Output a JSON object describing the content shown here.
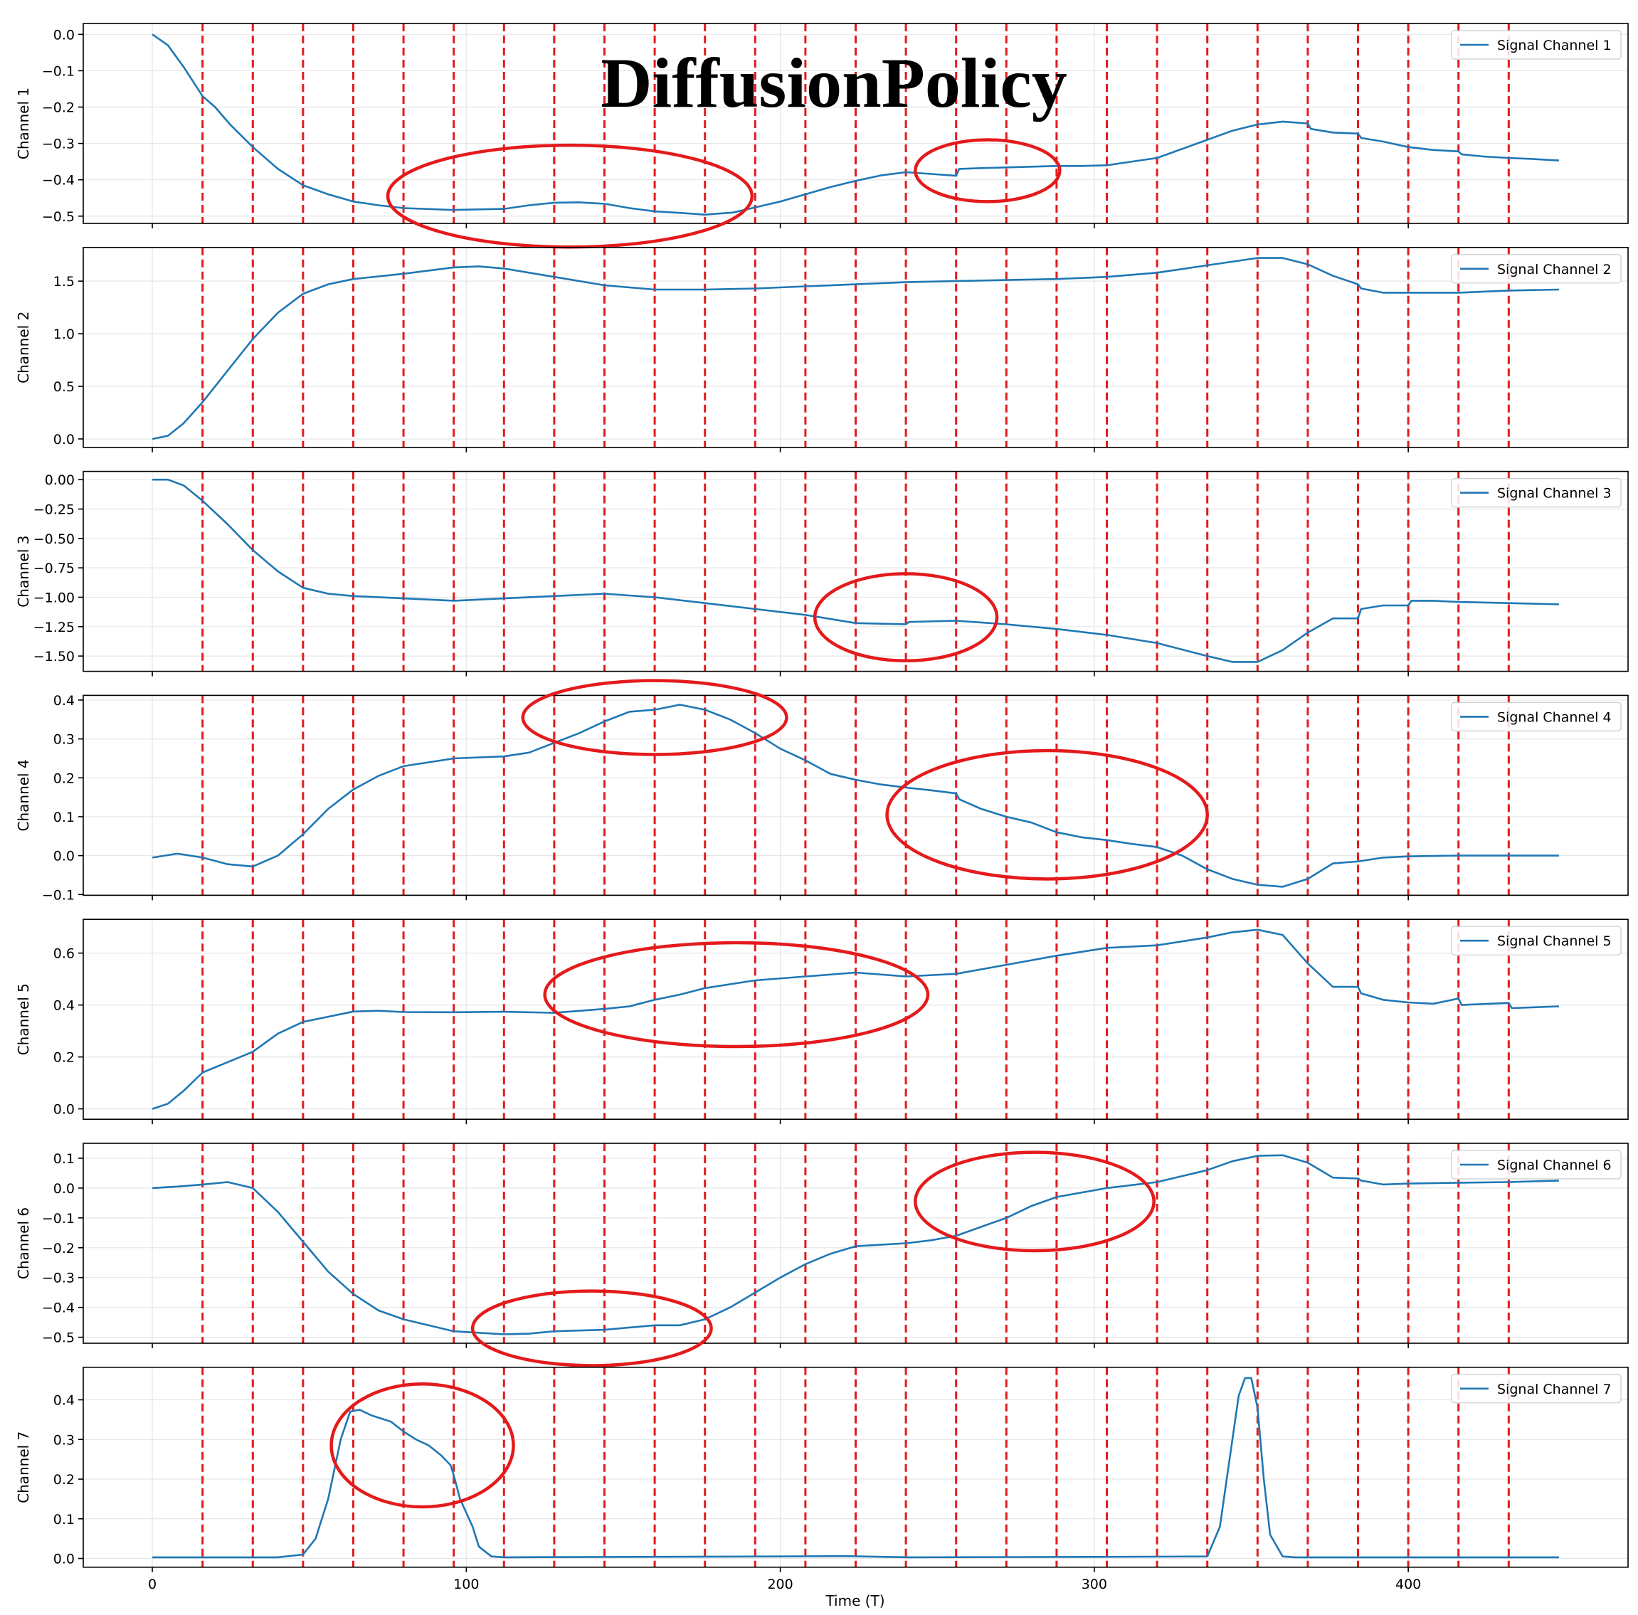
{
  "title": "DiffusionPolicy",
  "xlabel": "Time (T)",
  "colors": {
    "line": "#1f77b4",
    "marker": "#e41a1c",
    "grid": "#e6e6e6"
  },
  "chart_data": {
    "type": "line",
    "title": "DiffusionPolicy",
    "xlabel": "Time (T)",
    "xlim": [
      -22,
      470
    ],
    "xticks": [
      0,
      100,
      200,
      300,
      400
    ],
    "grid": true,
    "legend_position": "top-right",
    "vertical_markers": {
      "style": "dashed",
      "color": "#e41a1c",
      "x": [
        16,
        32,
        48,
        64,
        80,
        96,
        112,
        128,
        144,
        160,
        176,
        192,
        208,
        224,
        240,
        256,
        272,
        288,
        304,
        320,
        336,
        352,
        368,
        384,
        400,
        416,
        432
      ]
    },
    "panels": [
      {
        "ylabel": "Channel 1",
        "legend": "Signal Channel 1",
        "ylim": [
          -0.52,
          0.03
        ],
        "yticks": [
          0.0,
          -0.1,
          -0.2,
          -0.3,
          -0.4,
          -0.5
        ],
        "x": [
          0,
          5,
          10,
          16,
          20,
          25,
          32,
          40,
          48,
          56,
          64,
          72,
          80,
          96,
          112,
          120,
          128,
          136,
          144,
          152,
          160,
          168,
          176,
          185,
          192,
          200,
          208,
          216,
          224,
          232,
          240,
          248,
          256,
          257,
          264,
          272,
          280,
          288,
          296,
          304,
          312,
          320,
          328,
          336,
          344,
          352,
          360,
          368,
          369,
          376,
          384,
          385,
          392,
          400,
          408,
          416,
          417,
          424,
          432,
          440,
          448
        ],
        "y": [
          0.0,
          -0.03,
          -0.09,
          -0.17,
          -0.2,
          -0.25,
          -0.31,
          -0.37,
          -0.415,
          -0.44,
          -0.46,
          -0.47,
          -0.478,
          -0.483,
          -0.48,
          -0.47,
          -0.463,
          -0.462,
          -0.466,
          -0.478,
          -0.487,
          -0.491,
          -0.496,
          -0.49,
          -0.476,
          -0.46,
          -0.44,
          -0.42,
          -0.403,
          -0.388,
          -0.379,
          -0.384,
          -0.389,
          -0.37,
          -0.368,
          -0.366,
          -0.364,
          -0.362,
          -0.362,
          -0.36,
          -0.35,
          -0.34,
          -0.315,
          -0.29,
          -0.265,
          -0.248,
          -0.24,
          -0.245,
          -0.26,
          -0.27,
          -0.273,
          -0.285,
          -0.295,
          -0.31,
          -0.318,
          -0.322,
          -0.33,
          -0.336,
          -0.34,
          -0.343,
          -0.347
        ],
        "annotations": [
          {
            "cx": 133,
            "cy": -0.445,
            "rx": 58,
            "ry": 0.14
          },
          {
            "cx": 266,
            "cy": -0.375,
            "rx": 23,
            "ry": 0.085
          }
        ]
      },
      {
        "ylabel": "Channel 2",
        "legend": "Signal Channel 2",
        "ylim": [
          -0.08,
          1.82
        ],
        "yticks": [
          0.0,
          0.5,
          1.0,
          1.5
        ],
        "x": [
          0,
          5,
          10,
          16,
          24,
          32,
          40,
          48,
          56,
          64,
          80,
          96,
          104,
          112,
          128,
          144,
          160,
          176,
          192,
          208,
          224,
          240,
          256,
          272,
          288,
          304,
          320,
          336,
          352,
          360,
          368,
          376,
          384,
          385,
          392,
          400,
          408,
          416,
          432,
          448
        ],
        "y": [
          0.0,
          0.03,
          0.15,
          0.35,
          0.65,
          0.95,
          1.2,
          1.38,
          1.47,
          1.52,
          1.57,
          1.63,
          1.64,
          1.62,
          1.54,
          1.46,
          1.42,
          1.42,
          1.43,
          1.45,
          1.47,
          1.49,
          1.5,
          1.51,
          1.52,
          1.54,
          1.58,
          1.65,
          1.72,
          1.72,
          1.66,
          1.55,
          1.47,
          1.43,
          1.39,
          1.39,
          1.39,
          1.39,
          1.41,
          1.42
        ],
        "annotations": []
      },
      {
        "ylabel": "Channel 3",
        "legend": "Signal Channel 3",
        "ylim": [
          -1.63,
          0.07
        ],
        "yticks": [
          0.0,
          -0.25,
          -0.5,
          -0.75,
          -1.0,
          -1.25,
          -1.5
        ],
        "x": [
          0,
          5,
          10,
          16,
          24,
          32,
          40,
          48,
          56,
          64,
          80,
          96,
          112,
          128,
          144,
          160,
          176,
          192,
          208,
          224,
          240,
          241,
          256,
          272,
          288,
          304,
          320,
          336,
          344,
          352,
          360,
          368,
          376,
          384,
          385,
          392,
          400,
          401,
          408,
          416,
          432,
          448
        ],
        "y": [
          0.0,
          0.0,
          -0.05,
          -0.18,
          -0.38,
          -0.6,
          -0.78,
          -0.92,
          -0.97,
          -0.99,
          -1.01,
          -1.03,
          -1.01,
          -0.99,
          -0.97,
          -1.0,
          -1.05,
          -1.1,
          -1.15,
          -1.22,
          -1.23,
          -1.21,
          -1.2,
          -1.23,
          -1.27,
          -1.32,
          -1.39,
          -1.5,
          -1.55,
          -1.55,
          -1.45,
          -1.3,
          -1.18,
          -1.18,
          -1.1,
          -1.07,
          -1.07,
          -1.03,
          -1.03,
          -1.04,
          -1.05,
          -1.06
        ],
        "annotations": [
          {
            "cx": 240,
            "cy": -1.17,
            "rx": 29,
            "ry": 0.37
          }
        ]
      },
      {
        "ylabel": "Channel 4",
        "legend": "Signal Channel 4",
        "ylim": [
          -0.102,
          0.412
        ],
        "yticks": [
          0.4,
          0.3,
          0.2,
          0.1,
          0.0,
          -0.1
        ],
        "x": [
          0,
          8,
          16,
          24,
          32,
          40,
          48,
          56,
          64,
          72,
          80,
          96,
          112,
          120,
          128,
          136,
          144,
          152,
          160,
          168,
          176,
          184,
          192,
          200,
          208,
          216,
          224,
          232,
          240,
          248,
          256,
          257,
          264,
          272,
          280,
          288,
          296,
          304,
          312,
          320,
          328,
          336,
          344,
          352,
          360,
          368,
          376,
          384,
          392,
          400,
          416,
          432,
          448
        ],
        "y": [
          -0.005,
          0.005,
          -0.005,
          -0.022,
          -0.028,
          0.0,
          0.055,
          0.12,
          0.17,
          0.205,
          0.23,
          0.25,
          0.255,
          0.265,
          0.29,
          0.315,
          0.345,
          0.37,
          0.375,
          0.388,
          0.375,
          0.35,
          0.315,
          0.275,
          0.245,
          0.21,
          0.195,
          0.183,
          0.175,
          0.168,
          0.16,
          0.145,
          0.12,
          0.1,
          0.085,
          0.06,
          0.047,
          0.04,
          0.03,
          0.022,
          0.0,
          -0.035,
          -0.06,
          -0.075,
          -0.08,
          -0.06,
          -0.02,
          -0.015,
          -0.005,
          -0.002,
          0.0,
          0.0,
          0.0
        ],
        "annotations": [
          {
            "cx": 160,
            "cy": 0.355,
            "rx": 42,
            "ry": 0.095
          },
          {
            "cx": 285,
            "cy": 0.105,
            "rx": 51,
            "ry": 0.165
          }
        ]
      },
      {
        "ylabel": "Channel 5",
        "legend": "Signal Channel 5",
        "ylim": [
          -0.04,
          0.73
        ],
        "yticks": [
          0.0,
          0.2,
          0.4,
          0.6
        ],
        "x": [
          0,
          5,
          10,
          16,
          24,
          32,
          40,
          48,
          56,
          64,
          72,
          80,
          96,
          112,
          128,
          144,
          152,
          160,
          168,
          176,
          192,
          208,
          224,
          240,
          256,
          272,
          288,
          304,
          320,
          336,
          344,
          352,
          360,
          368,
          376,
          384,
          385,
          392,
          400,
          408,
          416,
          417,
          432,
          433,
          448
        ],
        "y": [
          0.0,
          0.02,
          0.07,
          0.14,
          0.18,
          0.22,
          0.29,
          0.335,
          0.355,
          0.375,
          0.378,
          0.373,
          0.372,
          0.374,
          0.37,
          0.385,
          0.395,
          0.42,
          0.44,
          0.465,
          0.495,
          0.51,
          0.525,
          0.51,
          0.52,
          0.555,
          0.59,
          0.62,
          0.63,
          0.66,
          0.68,
          0.69,
          0.67,
          0.56,
          0.47,
          0.47,
          0.445,
          0.42,
          0.41,
          0.405,
          0.425,
          0.4,
          0.408,
          0.388,
          0.395
        ],
        "annotations": [
          {
            "cx": 186,
            "cy": 0.44,
            "rx": 61,
            "ry": 0.2
          }
        ]
      },
      {
        "ylabel": "Channel 6",
        "legend": "Signal Channel 6",
        "ylim": [
          -0.52,
          0.15
        ],
        "yticks": [
          0.1,
          0.0,
          -0.1,
          -0.2,
          -0.3,
          -0.4,
          -0.5
        ],
        "x": [
          0,
          8,
          16,
          24,
          32,
          40,
          48,
          56,
          64,
          72,
          80,
          96,
          112,
          120,
          128,
          144,
          160,
          168,
          176,
          184,
          192,
          200,
          208,
          216,
          224,
          232,
          240,
          248,
          256,
          264,
          272,
          280,
          288,
          296,
          304,
          320,
          336,
          344,
          352,
          360,
          368,
          376,
          384,
          385,
          392,
          400,
          416,
          432,
          448
        ],
        "y": [
          0.0,
          0.005,
          0.012,
          0.02,
          0.0,
          -0.08,
          -0.18,
          -0.28,
          -0.355,
          -0.41,
          -0.44,
          -0.48,
          -0.49,
          -0.488,
          -0.48,
          -0.475,
          -0.46,
          -0.46,
          -0.44,
          -0.4,
          -0.35,
          -0.3,
          -0.255,
          -0.22,
          -0.195,
          -0.19,
          -0.185,
          -0.175,
          -0.16,
          -0.13,
          -0.1,
          -0.06,
          -0.03,
          -0.015,
          0.0,
          0.02,
          0.06,
          0.09,
          0.108,
          0.11,
          0.085,
          0.035,
          0.032,
          0.025,
          0.012,
          0.015,
          0.018,
          0.02,
          0.025
        ],
        "annotations": [
          {
            "cx": 140,
            "cy": -0.47,
            "rx": 38,
            "ry": 0.125
          },
          {
            "cx": 281,
            "cy": -0.045,
            "rx": 38,
            "ry": 0.165
          }
        ]
      },
      {
        "ylabel": "Channel 7",
        "legend": "Signal Channel 7",
        "ylim": [
          -0.022,
          0.482
        ],
        "yticks": [
          0.0,
          0.1,
          0.2,
          0.3,
          0.4
        ],
        "x": [
          0,
          40,
          48,
          52,
          56,
          60,
          63,
          66,
          70,
          76,
          80,
          84,
          88,
          92,
          95,
          96,
          98,
          102,
          104,
          108,
          112,
          200,
          220,
          240,
          300,
          336,
          340,
          344,
          346,
          348,
          350,
          352,
          354,
          356,
          360,
          364,
          448
        ],
        "y": [
          0.003,
          0.003,
          0.01,
          0.05,
          0.15,
          0.3,
          0.37,
          0.375,
          0.36,
          0.345,
          0.32,
          0.3,
          0.285,
          0.26,
          0.235,
          0.21,
          0.15,
          0.08,
          0.03,
          0.005,
          0.003,
          0.005,
          0.006,
          0.003,
          0.004,
          0.005,
          0.08,
          0.3,
          0.41,
          0.455,
          0.455,
          0.38,
          0.2,
          0.06,
          0.005,
          0.003,
          0.003
        ],
        "annotations": [
          {
            "cx": 86,
            "cy": 0.285,
            "rx": 29,
            "ry": 0.155
          }
        ]
      }
    ]
  }
}
